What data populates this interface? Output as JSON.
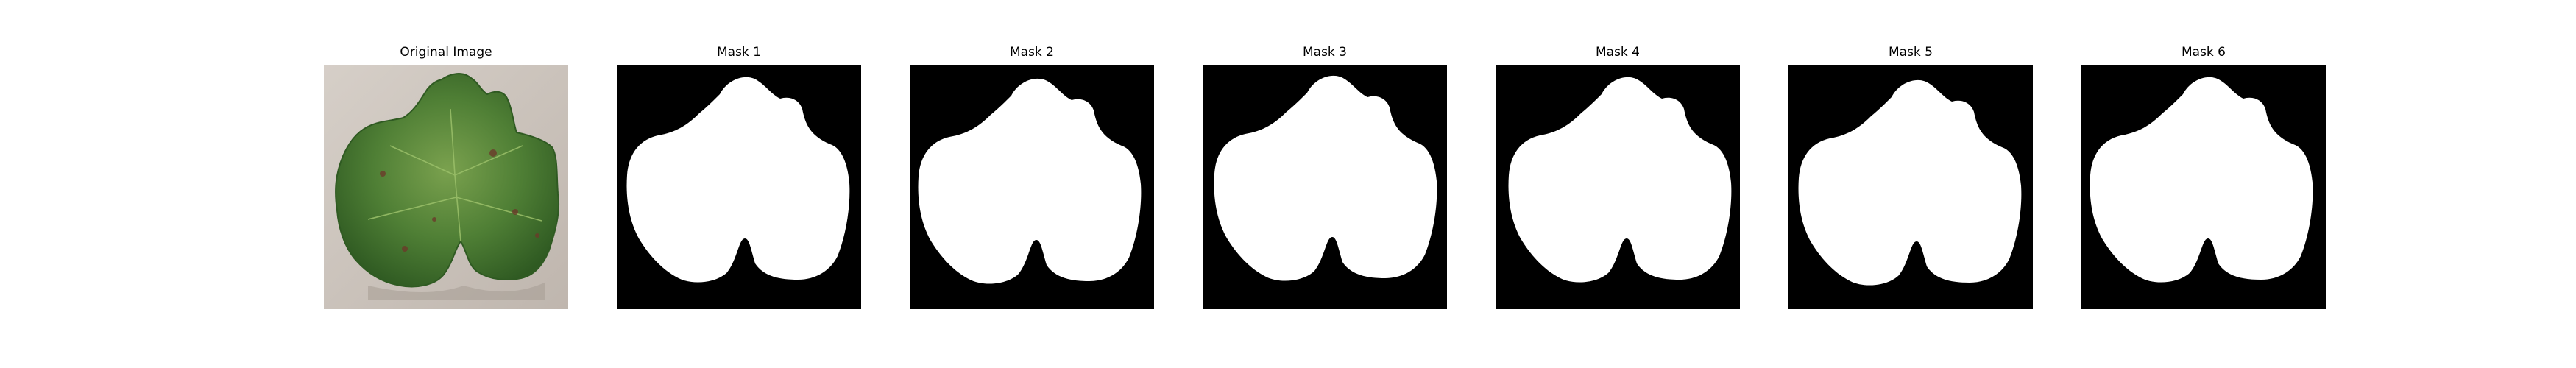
{
  "figure": {
    "panels": [
      {
        "id": "original",
        "title": "Original Image",
        "kind": "photo"
      },
      {
        "id": "mask1",
        "title": "Mask 1",
        "kind": "mask",
        "variant": 1
      },
      {
        "id": "mask2",
        "title": "Mask 2",
        "kind": "mask",
        "variant": 2
      },
      {
        "id": "mask3",
        "title": "Mask 3",
        "kind": "mask",
        "variant": 3
      },
      {
        "id": "mask4",
        "title": "Mask 4",
        "kind": "mask",
        "variant": 4
      },
      {
        "id": "mask5",
        "title": "Mask 5",
        "kind": "mask",
        "variant": 5
      },
      {
        "id": "mask6",
        "title": "Mask 6",
        "kind": "mask",
        "variant": 6
      }
    ],
    "colors": {
      "background": "#ffffff",
      "mask_background": "#000000",
      "mask_foreground": "#ffffff",
      "photo_background": "#cfc7c0",
      "leaf_dark": "#2f5a22",
      "leaf_mid": "#4f7f35",
      "leaf_light": "#7aa14e",
      "lesion": "#6b3b2a"
    }
  }
}
